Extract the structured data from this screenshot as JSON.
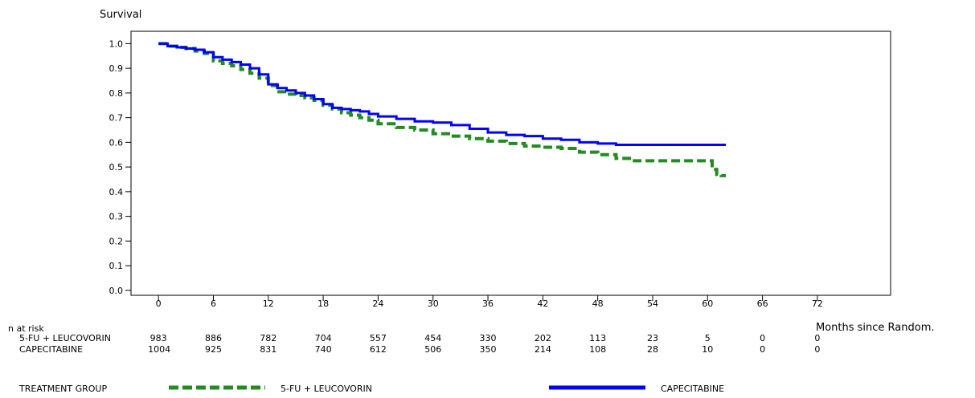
{
  "chart_data": {
    "type": "line",
    "title": "",
    "ylabel": "Survival",
    "xlabel": "Months since Random.",
    "xlim": [
      -3,
      80
    ],
    "ylim": [
      -0.02,
      1.05
    ],
    "x_ticks": [
      0,
      6,
      12,
      18,
      24,
      30,
      36,
      42,
      48,
      54,
      60,
      66,
      72
    ],
    "y_ticks": [
      0.0,
      0.1,
      0.2,
      0.3,
      0.4,
      0.5,
      0.6,
      0.7,
      0.8,
      0.9,
      1.0
    ],
    "y_tick_labels": [
      "0.0",
      "0.1",
      "0.2",
      "0.3",
      "0.4",
      "0.5",
      "0.6",
      "0.7",
      "0.8",
      "0.9",
      "1.0"
    ],
    "series": [
      {
        "name": "5-FU + LEUCOVORIN",
        "color": "#228b22",
        "style": "dashed",
        "x": [
          0,
          1,
          2,
          3,
          4,
          5,
          6,
          7,
          8,
          9,
          10,
          11,
          12,
          13,
          14,
          15,
          16,
          17,
          18,
          19,
          20,
          21,
          22,
          23,
          24,
          26,
          28,
          30,
          32,
          34,
          36,
          38,
          40,
          42,
          44,
          46,
          48,
          50,
          52,
          54,
          56,
          58,
          59,
          60,
          60.5,
          61,
          61.5,
          62
        ],
        "y": [
          1.0,
          0.99,
          0.985,
          0.98,
          0.97,
          0.96,
          0.93,
          0.92,
          0.91,
          0.895,
          0.88,
          0.86,
          0.83,
          0.805,
          0.795,
          0.79,
          0.78,
          0.77,
          0.75,
          0.735,
          0.72,
          0.71,
          0.7,
          0.69,
          0.675,
          0.66,
          0.65,
          0.635,
          0.625,
          0.615,
          0.605,
          0.595,
          0.585,
          0.58,
          0.575,
          0.56,
          0.55,
          0.535,
          0.525,
          0.525,
          0.525,
          0.525,
          0.525,
          0.525,
          0.49,
          0.47,
          0.465,
          0.465
        ]
      },
      {
        "name": "CAPECITABINE",
        "color": "#0000ff",
        "style": "solid",
        "x": [
          0,
          1,
          2,
          3,
          4,
          5,
          6,
          7,
          8,
          9,
          10,
          11,
          12,
          13,
          14,
          15,
          16,
          17,
          18,
          19,
          20,
          21,
          22,
          23,
          24,
          26,
          28,
          30,
          32,
          34,
          36,
          38,
          40,
          42,
          44,
          46,
          48,
          50,
          52,
          54,
          56,
          58,
          60,
          62
        ],
        "y": [
          1.0,
          0.99,
          0.985,
          0.98,
          0.975,
          0.965,
          0.945,
          0.935,
          0.925,
          0.915,
          0.9,
          0.875,
          0.835,
          0.82,
          0.81,
          0.8,
          0.79,
          0.775,
          0.755,
          0.74,
          0.735,
          0.73,
          0.725,
          0.715,
          0.705,
          0.695,
          0.685,
          0.68,
          0.67,
          0.655,
          0.64,
          0.63,
          0.625,
          0.615,
          0.61,
          0.6,
          0.595,
          0.59,
          0.59,
          0.59,
          0.59,
          0.59,
          0.59,
          0.59
        ]
      }
    ],
    "risk_table": {
      "header": "n at risk",
      "time_points": [
        0,
        6,
        12,
        18,
        24,
        30,
        36,
        42,
        48,
        54,
        60,
        66,
        72
      ],
      "rows": [
        {
          "label": "5-FU + LEUCOVORIN",
          "values": [
            "983",
            "886",
            "782",
            "704",
            "557",
            "454",
            "330",
            "202",
            "113",
            "23",
            "5",
            "0",
            "0"
          ]
        },
        {
          "label": "CAPECITABINE",
          "values": [
            "1004",
            "925",
            "831",
            "740",
            "612",
            "506",
            "350",
            "214",
            "108",
            "28",
            "10",
            "0",
            "0"
          ]
        }
      ]
    },
    "legend": {
      "title": "TREATMENT GROUP",
      "placement": "bottom",
      "entries": [
        {
          "label": "5-FU + LEUCOVORIN",
          "color": "#228b22",
          "style": "dashed"
        },
        {
          "label": "CAPECITABINE",
          "color": "#0000ff",
          "style": "solid"
        }
      ]
    }
  }
}
